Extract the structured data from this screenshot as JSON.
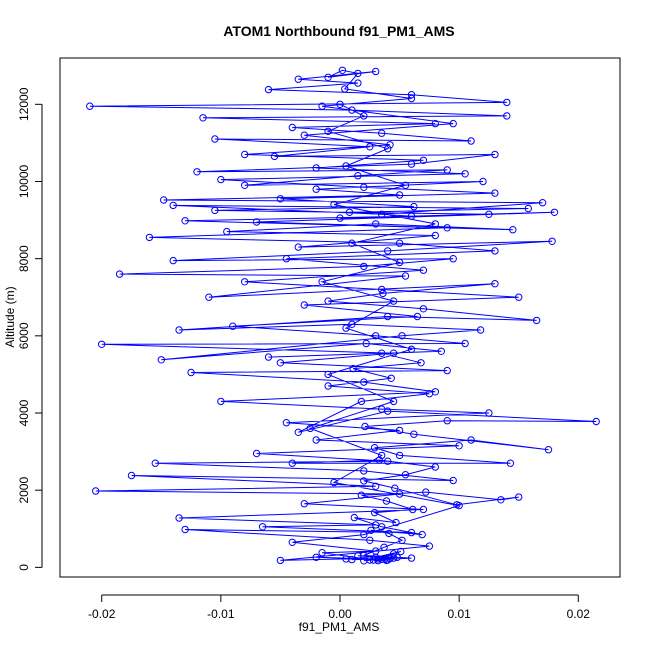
{
  "chart_data": {
    "type": "scatter",
    "mode": "lines+points",
    "title": "ATOM1 Northbound f91_PM1_AMS",
    "xlabel": "f91_PM1_AMS",
    "ylabel": "Altitude (m)",
    "x_ticks": [
      -0.02,
      -0.01,
      0.0,
      0.01,
      0.02
    ],
    "x_tick_labels": [
      "-0.02",
      "-0.01",
      "0.00",
      "0.01",
      "0.02"
    ],
    "y_ticks": [
      0,
      2000,
      4000,
      6000,
      8000,
      10000,
      12000
    ],
    "y_tick_labels": [
      "0",
      "2000",
      "4000",
      "6000",
      "8000",
      "10000",
      "12000"
    ],
    "xlim": [
      -0.0235,
      0.0235
    ],
    "ylim": [
      -250,
      13200
    ],
    "color": "#0000ff",
    "grid": false,
    "points": [
      [
        0.0039,
        180
      ],
      [
        0.0032,
        220
      ],
      [
        0.0045,
        350
      ],
      [
        0.003,
        260
      ],
      [
        0.0051,
        410
      ],
      [
        0.0028,
        190
      ],
      [
        0.006,
        240
      ],
      [
        0.002,
        310
      ],
      [
        0.0037,
        520
      ],
      [
        0.0052,
        700
      ],
      [
        0.0041,
        880
      ],
      [
        0.0026,
        960
      ],
      [
        0.0069,
        850
      ],
      [
        0.0035,
        1050
      ],
      [
        0.0012,
        1290
      ],
      [
        0.0047,
        1160
      ],
      [
        0.0029,
        1420
      ],
      [
        0.0061,
        1500
      ],
      [
        0.0039,
        1720
      ],
      [
        0.0018,
        1870
      ],
      [
        0.0072,
        1950
      ],
      [
        0.0135,
        1750
      ],
      [
        0.015,
        1820
      ],
      [
        0.0098,
        1620
      ],
      [
        0.0046,
        2050
      ],
      [
        0.002,
        2240
      ],
      [
        0.0055,
        2400
      ],
      [
        0.008,
        2600
      ],
      [
        0.0033,
        2780
      ],
      [
        -0.004,
        2700
      ],
      [
        0.0143,
        2700
      ],
      [
        0.005,
        2900
      ],
      [
        0.0029,
        3100
      ],
      [
        0.011,
        3300
      ],
      [
        0.0175,
        3050
      ],
      [
        0.0062,
        3450
      ],
      [
        0.0021,
        3650
      ],
      [
        0.009,
        3800
      ],
      [
        0.0215,
        3780
      ],
      [
        0.004,
        4050
      ],
      [
        -0.0035,
        3500
      ],
      [
        0.0018,
        4300
      ],
      [
        0.0075,
        4500
      ],
      [
        -0.001,
        4700
      ],
      [
        0.0043,
        4900
      ],
      [
        0.0011,
        5150
      ],
      [
        0.0068,
        5300
      ],
      [
        0.0035,
        5550
      ],
      [
        -0.006,
        5450
      ],
      [
        0.0085,
        5600
      ],
      [
        0.0022,
        5800
      ],
      [
        -0.015,
        5380
      ],
      [
        0.0052,
        6000
      ],
      [
        0.0118,
        6150
      ],
      [
        0.001,
        6300
      ],
      [
        -0.0135,
        6150
      ],
      [
        0.004,
        6500
      ],
      [
        0.0165,
        6400
      ],
      [
        0.007,
        6700
      ],
      [
        -0.001,
        6900
      ],
      [
        0.0036,
        7100
      ],
      [
        0.013,
        7350
      ],
      [
        -0.011,
        7000
      ],
      [
        0.0055,
        7550
      ],
      [
        -0.0185,
        7600
      ],
      [
        0.002,
        7800
      ],
      [
        0.0095,
        8000
      ],
      [
        -0.014,
        7950
      ],
      [
        0.004,
        8200
      ],
      [
        0.0178,
        8450
      ],
      [
        -0.0035,
        8300
      ],
      [
        0.008,
        8600
      ],
      [
        -0.0095,
        8700
      ],
      [
        0.003,
        8900
      ],
      [
        0.0145,
        8750
      ],
      [
        -0.013,
        8980
      ],
      [
        0.006,
        9100
      ],
      [
        0.0008,
        9200
      ],
      [
        0.0158,
        9300
      ],
      [
        -0.014,
        9380
      ],
      [
        0.0035,
        9150
      ],
      [
        0.017,
        9450
      ],
      [
        -0.0148,
        9520
      ],
      [
        0.005,
        9650
      ],
      [
        -0.002,
        9800
      ],
      [
        0.012,
        10000
      ],
      [
        -0.008,
        9900
      ],
      [
        0.0015,
        10150
      ],
      [
        0.009,
        10300
      ],
      [
        -0.012,
        10250
      ],
      [
        0.006,
        10450
      ],
      [
        0.013,
        10700
      ],
      [
        -0.0055,
        10650
      ],
      [
        0.0025,
        10900
      ],
      [
        -0.0105,
        11100
      ],
      [
        0.011,
        11050
      ],
      [
        0.0035,
        11250
      ],
      [
        -0.004,
        11400
      ],
      [
        0.008,
        11500
      ],
      [
        -0.0115,
        11650
      ],
      [
        0.014,
        11700
      ],
      [
        0.001,
        11850
      ],
      [
        -0.021,
        11950
      ],
      [
        0.014,
        12050
      ],
      [
        0.006,
        12250
      ],
      [
        -0.006,
        12380
      ],
      [
        0.0015,
        12550
      ],
      [
        -0.0035,
        12650
      ],
      [
        0.003,
        12850
      ],
      [
        -0.001,
        12700
      ],
      [
        0.0002,
        12880
      ],
      [
        0.0015,
        12800
      ],
      [
        0.0004,
        12400
      ],
      [
        0.006,
        12150
      ],
      [
        -0.0015,
        11950
      ],
      [
        0.0095,
        11500
      ],
      [
        -0.003,
        11200
      ],
      [
        0.0042,
        10950
      ],
      [
        -0.008,
        10700
      ],
      [
        0.007,
        10550
      ],
      [
        -0.002,
        10350
      ],
      [
        0.0105,
        10200
      ],
      [
        -0.01,
        10050
      ],
      [
        0.002,
        9850
      ],
      [
        0.013,
        9700
      ],
      [
        -0.005,
        9550
      ],
      [
        0.0062,
        9350
      ],
      [
        -0.0105,
        9250
      ],
      [
        0.0125,
        9150
      ],
      [
        0.0,
        9050
      ],
      [
        0.018,
        9200
      ],
      [
        -0.007,
        8950
      ],
      [
        0.009,
        8800
      ],
      [
        -0.016,
        8550
      ],
      [
        0.005,
        8400
      ],
      [
        0.013,
        8200
      ],
      [
        -0.0045,
        8000
      ],
      [
        0.007,
        7700
      ],
      [
        -0.008,
        7400
      ],
      [
        0.0035,
        7200
      ],
      [
        0.015,
        7000
      ],
      [
        -0.003,
        6800
      ],
      [
        0.0065,
        6500
      ],
      [
        -0.009,
        6250
      ],
      [
        0.003,
        6000
      ],
      [
        0.0105,
        5800
      ],
      [
        -0.02,
        5780
      ],
      [
        0.0045,
        5550
      ],
      [
        -0.005,
        5300
      ],
      [
        0.009,
        5100
      ],
      [
        -0.0125,
        5050
      ],
      [
        0.002,
        4800
      ],
      [
        0.008,
        4550
      ],
      [
        -0.01,
        4300
      ],
      [
        0.0035,
        4100
      ],
      [
        0.0125,
        4000
      ],
      [
        -0.0045,
        3750
      ],
      [
        0.005,
        3550
      ],
      [
        -0.002,
        3300
      ],
      [
        0.01,
        3150
      ],
      [
        -0.007,
        2950
      ],
      [
        0.004,
        2750
      ],
      [
        -0.0155,
        2700
      ],
      [
        0.002,
        2500
      ],
      [
        0.0095,
        2250
      ],
      [
        -0.0175,
        2380
      ],
      [
        0.003,
        2100
      ],
      [
        -0.0205,
        1980
      ],
      [
        0.005,
        1900
      ],
      [
        -0.003,
        1650
      ],
      [
        0.007,
        1500
      ],
      [
        -0.0135,
        1280
      ],
      [
        0.003,
        1100
      ],
      [
        -0.0065,
        1050
      ],
      [
        0.006,
        900
      ],
      [
        -0.013,
        980
      ],
      [
        0.0025,
        700
      ],
      [
        0.0075,
        550
      ],
      [
        -0.005,
        180
      ],
      [
        0.0005,
        220
      ],
      [
        0.004,
        190
      ],
      [
        -0.002,
        260
      ],
      [
        0.0035,
        210
      ],
      [
        0.002,
        170
      ],
      [
        0.0045,
        240
      ],
      [
        0.001,
        200
      ],
      [
        0.0038,
        220
      ],
      [
        0.0025,
        190
      ],
      [
        0.0048,
        260
      ],
      [
        0.0015,
        300
      ],
      [
        0.0042,
        230
      ],
      [
        0.0032,
        175
      ],
      [
        -0.0015,
        380
      ],
      [
        0.003,
        420
      ],
      [
        -0.004,
        650
      ],
      [
        0.002,
        850
      ],
      [
        0.01,
        1600
      ],
      [
        -0.0005,
        2200
      ],
      [
        0.0035,
        2900
      ],
      [
        -0.0025,
        3600
      ],
      [
        0.0045,
        4300
      ],
      [
        -0.001,
        5000
      ],
      [
        0.006,
        5650
      ],
      [
        0.0005,
        6200
      ],
      [
        0.0045,
        6900
      ],
      [
        -0.0015,
        7400
      ],
      [
        0.005,
        7900
      ],
      [
        0.001,
        8400
      ],
      [
        0.008,
        8900
      ],
      [
        -0.0005,
        9400
      ],
      [
        0.0055,
        9900
      ],
      [
        0.0005,
        10400
      ],
      [
        0.004,
        10850
      ],
      [
        -0.001,
        11300
      ],
      [
        0.002,
        11700
      ],
      [
        0.0,
        12000
      ]
    ]
  }
}
